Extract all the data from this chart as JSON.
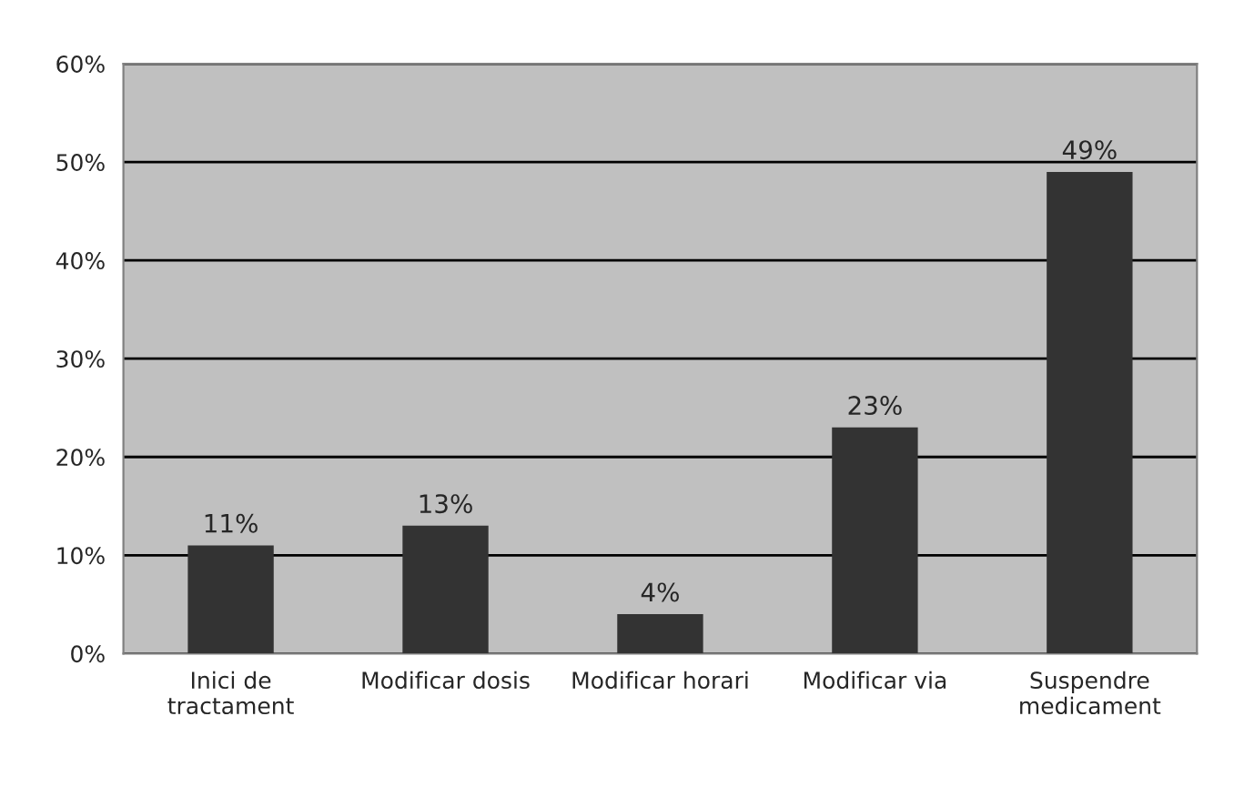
{
  "chart_data": {
    "type": "bar",
    "categories": [
      "Inici de\ntractament",
      "Modificar dosis",
      "Modificar horari",
      "Modificar via",
      "Suspendre\nmedicament"
    ],
    "values": [
      11,
      13,
      4,
      23,
      49
    ],
    "value_labels": [
      "11%",
      "13%",
      "4%",
      "23%",
      "49%"
    ],
    "color": "#333333",
    "ylim": [
      0,
      60
    ],
    "yticks": [
      {
        "value": 0,
        "label": "0%"
      },
      {
        "value": 10,
        "label": "10%"
      },
      {
        "value": 20,
        "label": "20%"
      },
      {
        "value": 30,
        "label": "30%"
      },
      {
        "value": 40,
        "label": "40%"
      },
      {
        "value": 50,
        "label": "50%"
      },
      {
        "value": 60,
        "label": "60%"
      }
    ],
    "grid": "y"
  }
}
